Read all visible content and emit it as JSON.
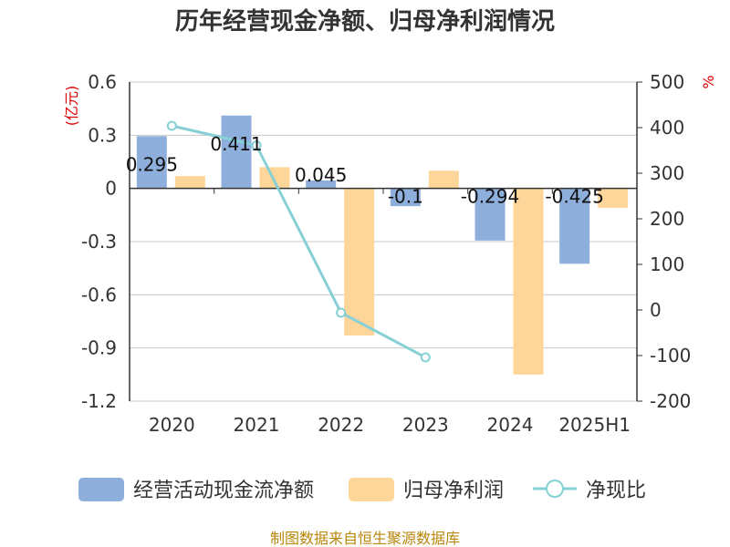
{
  "title": "历年经营现金净额、归母净利润情况",
  "source": "制图数据来自恒生聚源数据库",
  "chart_data": {
    "type": "bar",
    "categories": [
      "2020",
      "2021",
      "2022",
      "2023",
      "2024",
      "2025H1"
    ],
    "series": [
      {
        "name": "经营活动现金流净额",
        "kind": "bar",
        "axis": "left",
        "color": "#8eaedb",
        "values": [
          0.295,
          0.411,
          0.045,
          -0.1,
          -0.294,
          -0.425
        ],
        "labels": [
          "0.295",
          "0.411",
          "0.045",
          "-0.1",
          "-0.294",
          "-0.425"
        ]
      },
      {
        "name": "归母净利润",
        "kind": "bar",
        "axis": "left",
        "color": "#ffd699",
        "values": [
          0.07,
          0.12,
          -0.83,
          0.1,
          -1.05,
          -0.11
        ]
      },
      {
        "name": "净现比",
        "kind": "line",
        "axis": "right",
        "color": "#86d0d6",
        "values": [
          404,
          361,
          -6,
          -104,
          null,
          null
        ]
      }
    ],
    "left_axis": {
      "unit": "(亿元)",
      "ylim": [
        -1.2,
        0.6
      ],
      "ticks": [
        0.6,
        0.3,
        0,
        -0.3,
        -0.6,
        -0.9,
        -1.2
      ],
      "tick_labels": [
        "0.6",
        "0.3",
        "0",
        "-0.3",
        "-0.6",
        "-0.9",
        "-1.2"
      ]
    },
    "right_axis": {
      "unit": "%",
      "ylim": [
        -200,
        500
      ],
      "ticks": [
        500,
        400,
        300,
        200,
        100,
        0,
        -100,
        -200
      ],
      "tick_labels": [
        "500",
        "400",
        "300",
        "200",
        "100",
        "0",
        "-100",
        "-200"
      ]
    },
    "grid": true,
    "legend_position": "bottom"
  }
}
